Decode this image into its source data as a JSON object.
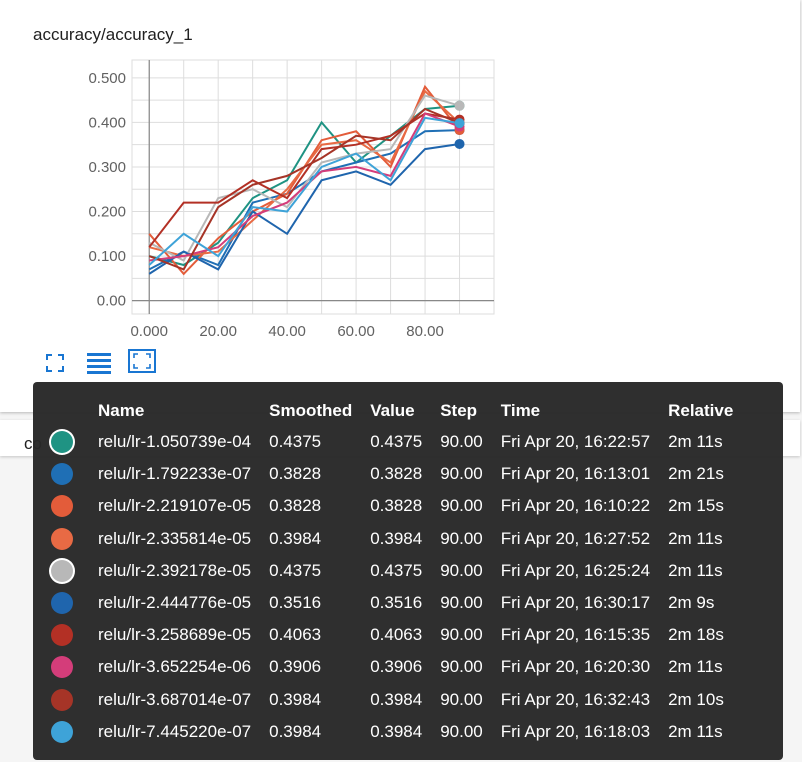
{
  "card": {
    "title": "accuracy/accuracy_1",
    "controls": [
      {
        "name": "expand-icon"
      },
      {
        "name": "toggle-log-scale-icon"
      },
      {
        "name": "fit-domain-icon"
      }
    ]
  },
  "second_card": {
    "title": "co"
  },
  "chart_data": {
    "type": "line",
    "title": "",
    "xlabel": "",
    "ylabel": "",
    "xlim": [
      -5,
      100
    ],
    "ylim": [
      -0.03,
      0.54
    ],
    "x_ticks": [
      "0.000",
      "20.00",
      "40.00",
      "60.00",
      "80.00"
    ],
    "y_ticks": [
      "0.00",
      "0.100",
      "0.200",
      "0.300",
      "0.400",
      "0.500"
    ],
    "grid": true,
    "x": [
      0,
      10,
      20,
      30,
      40,
      50,
      60,
      70,
      80,
      90
    ],
    "series": [
      {
        "name": "relu/lr-1.050739e-04",
        "color": "#1f9383",
        "values": [
          0.1,
          0.08,
          0.13,
          0.23,
          0.27,
          0.4,
          0.31,
          0.37,
          0.43,
          0.4375
        ]
      },
      {
        "name": "relu/lr-1.792233e-07",
        "color": "#1f6fb5",
        "values": [
          0.07,
          0.11,
          0.08,
          0.22,
          0.24,
          0.29,
          0.31,
          0.33,
          0.38,
          0.3828
        ]
      },
      {
        "name": "relu/lr-2.219107e-05",
        "color": "#e35c3a",
        "values": [
          0.15,
          0.06,
          0.14,
          0.2,
          0.24,
          0.36,
          0.38,
          0.3,
          0.48,
          0.3828
        ]
      },
      {
        "name": "relu/lr-2.335814e-05",
        "color": "#e86a44",
        "values": [
          0.12,
          0.1,
          0.11,
          0.18,
          0.25,
          0.35,
          0.36,
          0.31,
          0.47,
          0.3984
        ]
      },
      {
        "name": "relu/lr-2.392178e-05",
        "color": "#b8b8b8",
        "values": [
          0.13,
          0.09,
          0.23,
          0.25,
          0.21,
          0.31,
          0.33,
          0.34,
          0.46,
          0.4375
        ]
      },
      {
        "name": "relu/lr-2.444776e-05",
        "color": "#1f65ad",
        "values": [
          0.06,
          0.11,
          0.07,
          0.2,
          0.15,
          0.27,
          0.29,
          0.26,
          0.34,
          0.3516
        ]
      },
      {
        "name": "relu/lr-3.258689e-05",
        "color": "#b33025",
        "values": [
          0.12,
          0.22,
          0.22,
          0.27,
          0.23,
          0.34,
          0.35,
          0.37,
          0.42,
          0.4063
        ]
      },
      {
        "name": "relu/lr-3.652254e-06",
        "color": "#d43d7a",
        "values": [
          0.09,
          0.1,
          0.12,
          0.19,
          0.22,
          0.29,
          0.3,
          0.28,
          0.42,
          0.3906
        ]
      },
      {
        "name": "relu/lr-3.687014e-07",
        "color": "#a63427",
        "values": [
          0.1,
          0.07,
          0.21,
          0.26,
          0.28,
          0.32,
          0.37,
          0.36,
          0.43,
          0.3984
        ]
      },
      {
        "name": "relu/lr-7.445220e-07",
        "color": "#3ea3d8",
        "values": [
          0.08,
          0.15,
          0.1,
          0.21,
          0.2,
          0.3,
          0.33,
          0.27,
          0.41,
          0.3984
        ]
      }
    ]
  },
  "tooltip": {
    "headers": {
      "name": "Name",
      "smoothed": "Smoothed",
      "value": "Value",
      "step": "Step",
      "time": "Time",
      "relative": "Relative"
    },
    "rows": [
      {
        "color": "#1f9383",
        "name": "relu/lr-1.050739e-04",
        "smoothed": "0.4375",
        "value": "0.4375",
        "step": "90.00",
        "time": "Fri Apr 20, 16:22:57",
        "relative": "2m 11s",
        "highlight": true
      },
      {
        "color": "#1f6fb5",
        "name": "relu/lr-1.792233e-07",
        "smoothed": "0.3828",
        "value": "0.3828",
        "step": "90.00",
        "time": "Fri Apr 20, 16:13:01",
        "relative": "2m 21s"
      },
      {
        "color": "#e35c3a",
        "name": "relu/lr-2.219107e-05",
        "smoothed": "0.3828",
        "value": "0.3828",
        "step": "90.00",
        "time": "Fri Apr 20, 16:10:22",
        "relative": "2m 15s"
      },
      {
        "color": "#e86a44",
        "name": "relu/lr-2.335814e-05",
        "smoothed": "0.3984",
        "value": "0.3984",
        "step": "90.00",
        "time": "Fri Apr 20, 16:27:52",
        "relative": "2m 11s"
      },
      {
        "color": "#b8b8b8",
        "name": "relu/lr-2.392178e-05",
        "smoothed": "0.4375",
        "value": "0.4375",
        "step": "90.00",
        "time": "Fri Apr 20, 16:25:24",
        "relative": "2m 11s",
        "highlight": true
      },
      {
        "color": "#1f65ad",
        "name": "relu/lr-2.444776e-05",
        "smoothed": "0.3516",
        "value": "0.3516",
        "step": "90.00",
        "time": "Fri Apr 20, 16:30:17",
        "relative": "2m 9s"
      },
      {
        "color": "#b33025",
        "name": "relu/lr-3.258689e-05",
        "smoothed": "0.4063",
        "value": "0.4063",
        "step": "90.00",
        "time": "Fri Apr 20, 16:15:35",
        "relative": "2m 18s"
      },
      {
        "color": "#d43d7a",
        "name": "relu/lr-3.652254e-06",
        "smoothed": "0.3906",
        "value": "0.3906",
        "step": "90.00",
        "time": "Fri Apr 20, 16:20:30",
        "relative": "2m 11s"
      },
      {
        "color": "#a63427",
        "name": "relu/lr-3.687014e-07",
        "smoothed": "0.3984",
        "value": "0.3984",
        "step": "90.00",
        "time": "Fri Apr 20, 16:32:43",
        "relative": "2m 10s"
      },
      {
        "color": "#3ea3d8",
        "name": "relu/lr-7.445220e-07",
        "smoothed": "0.3984",
        "value": "0.3984",
        "step": "90.00",
        "time": "Fri Apr 20, 16:18:03",
        "relative": "2m 11s"
      }
    ]
  },
  "colors": {
    "accent": "#1976d2",
    "tooltip_bg": "#2a2a2a",
    "grid": "#dddddd"
  }
}
